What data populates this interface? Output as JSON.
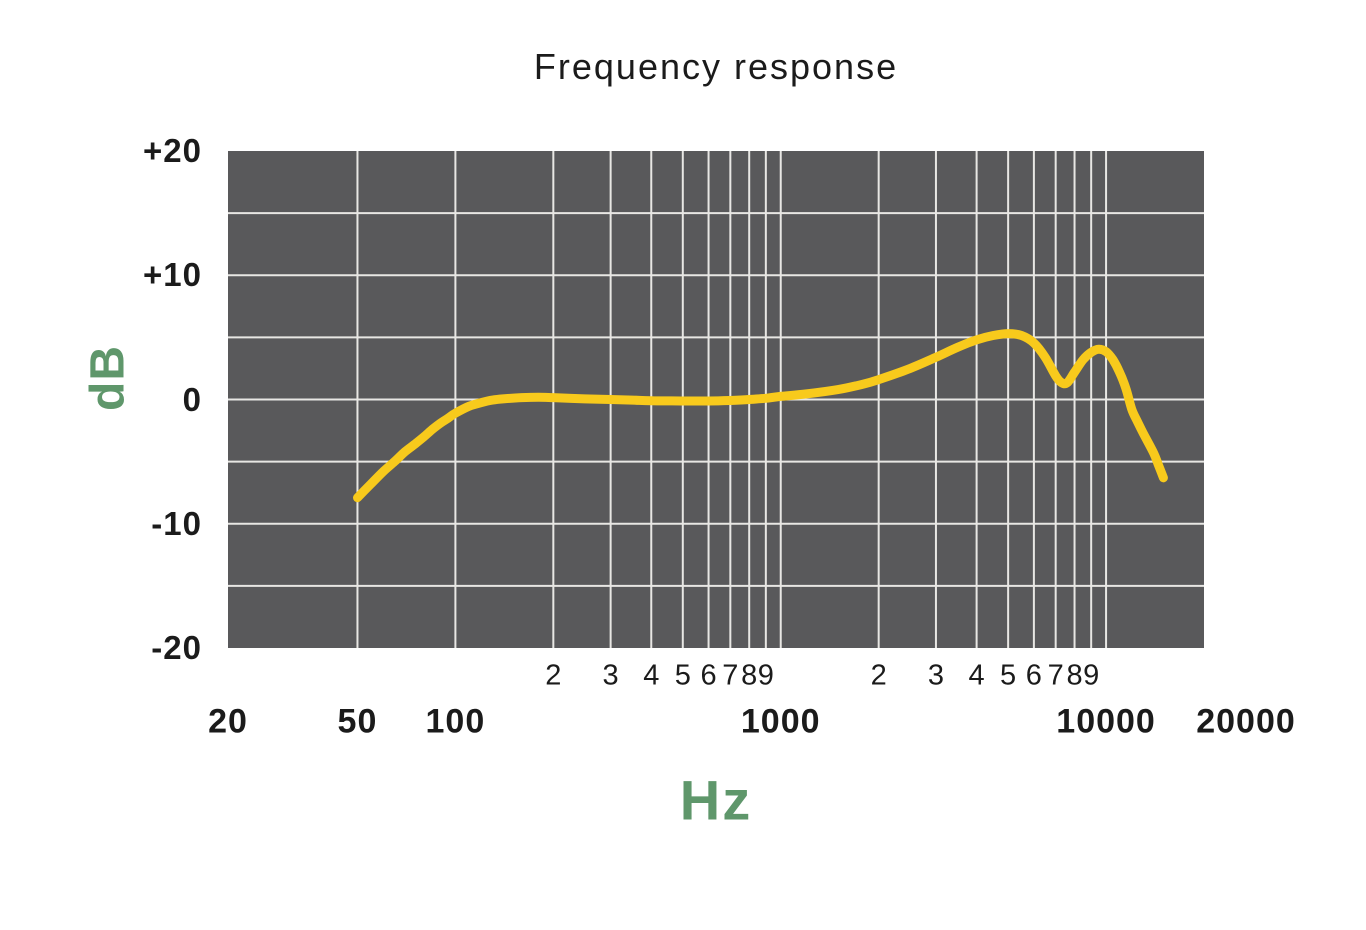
{
  "chart_data": {
    "type": "line",
    "title": "Frequency response",
    "xlabel": "Hz",
    "ylabel": "dB",
    "x_scale": "log",
    "xlim": [
      20,
      20000
    ],
    "ylim": [
      -20,
      20
    ],
    "grid": true,
    "y_gridline_step_db": 5,
    "legend": "none",
    "y_ticks": [
      {
        "value": 20,
        "label": "+20"
      },
      {
        "value": 10,
        "label": "+10"
      },
      {
        "value": 0,
        "label": "0"
      },
      {
        "value": -10,
        "label": "-10"
      },
      {
        "value": -20,
        "label": "-20"
      }
    ],
    "x_major_ticks": [
      {
        "value": 20,
        "label": "20"
      },
      {
        "value": 50,
        "label": "50"
      },
      {
        "value": 100,
        "label": "100"
      },
      {
        "value": 1000,
        "label": "1000"
      },
      {
        "value": 10000,
        "label": "10000"
      },
      {
        "value": 20000,
        "label": "20000"
      }
    ],
    "x_minor_tick_labels": [
      {
        "value": 200,
        "label": "2"
      },
      {
        "value": 300,
        "label": "3"
      },
      {
        "value": 400,
        "label": "4"
      },
      {
        "value": 500,
        "label": "5"
      },
      {
        "value": 600,
        "label": "6"
      },
      {
        "value": 700,
        "label": "7"
      },
      {
        "value": 800,
        "label": "8"
      },
      {
        "value": 900,
        "label": "9"
      },
      {
        "value": 2000,
        "label": "2"
      },
      {
        "value": 3000,
        "label": "3"
      },
      {
        "value": 4000,
        "label": "4"
      },
      {
        "value": 5000,
        "label": "5"
      },
      {
        "value": 6000,
        "label": "6"
      },
      {
        "value": 7000,
        "label": "7"
      },
      {
        "value": 8000,
        "label": "8"
      },
      {
        "value": 9000,
        "label": "9"
      }
    ],
    "x_gridlines": [
      50,
      100,
      200,
      300,
      400,
      500,
      600,
      700,
      800,
      900,
      1000,
      2000,
      3000,
      4000,
      5000,
      6000,
      7000,
      8000,
      9000,
      10000
    ],
    "series": [
      {
        "name": "frequency-response",
        "color": "#F8CA1C",
        "points_hz_db": [
          [
            50,
            -7.9
          ],
          [
            55,
            -6.8
          ],
          [
            60,
            -5.8
          ],
          [
            65,
            -5.0
          ],
          [
            70,
            -4.2
          ],
          [
            75,
            -3.6
          ],
          [
            80,
            -3.0
          ],
          [
            85,
            -2.4
          ],
          [
            90,
            -1.9
          ],
          [
            95,
            -1.5
          ],
          [
            100,
            -1.1
          ],
          [
            110,
            -0.55
          ],
          [
            120,
            -0.25
          ],
          [
            130,
            -0.05
          ],
          [
            140,
            0.05
          ],
          [
            160,
            0.15
          ],
          [
            180,
            0.18
          ],
          [
            200,
            0.15
          ],
          [
            250,
            0.05
          ],
          [
            300,
            0.0
          ],
          [
            350,
            -0.05
          ],
          [
            400,
            -0.1
          ],
          [
            500,
            -0.12
          ],
          [
            600,
            -0.12
          ],
          [
            700,
            -0.08
          ],
          [
            800,
            0.0
          ],
          [
            900,
            0.1
          ],
          [
            1000,
            0.25
          ],
          [
            1200,
            0.45
          ],
          [
            1500,
            0.8
          ],
          [
            1800,
            1.25
          ],
          [
            2000,
            1.6
          ],
          [
            2500,
            2.5
          ],
          [
            3000,
            3.4
          ],
          [
            3500,
            4.2
          ],
          [
            4000,
            4.8
          ],
          [
            4500,
            5.15
          ],
          [
            5000,
            5.3
          ],
          [
            5500,
            5.15
          ],
          [
            6000,
            4.55
          ],
          [
            6500,
            3.4
          ],
          [
            7000,
            1.9
          ],
          [
            7300,
            1.35
          ],
          [
            7600,
            1.35
          ],
          [
            8000,
            2.2
          ],
          [
            8500,
            3.2
          ],
          [
            9000,
            3.8
          ],
          [
            9500,
            4.05
          ],
          [
            10000,
            3.85
          ],
          [
            10500,
            3.2
          ],
          [
            11000,
            2.2
          ],
          [
            11500,
            0.9
          ],
          [
            12000,
            -0.8
          ],
          [
            12500,
            -1.8
          ],
          [
            13000,
            -2.7
          ],
          [
            14000,
            -4.3
          ],
          [
            14500,
            -5.3
          ],
          [
            15000,
            -6.3
          ]
        ]
      }
    ],
    "colors": {
      "page_background": "#FFFFFF",
      "plot_background": "#59595B",
      "gridline": "#E8E7E4",
      "curve": "#F8CA1C",
      "label_text": "#1B1B1B",
      "unit_label_text": "#5F976B"
    }
  }
}
